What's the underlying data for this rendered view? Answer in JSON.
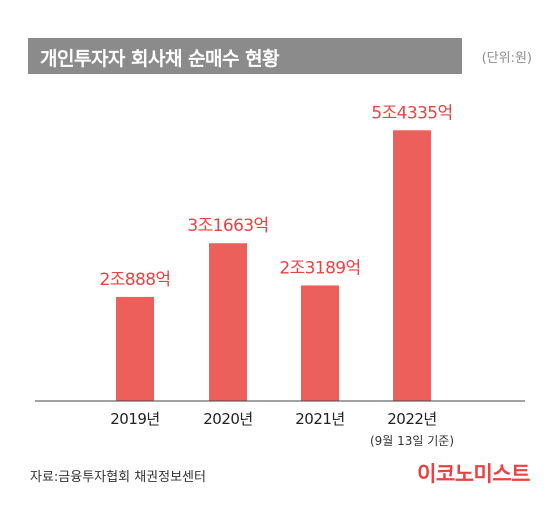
{
  "header": {
    "title": "개인투자자 회사채 순매수 현황",
    "unit": "(단위:원)"
  },
  "chart_data": {
    "type": "bar",
    "title": "개인투자자 회사채 순매수 현황",
    "unit": "(단위:원)",
    "categories": [
      "2019년",
      "2020년",
      "2021년",
      "2022년"
    ],
    "category_notes": [
      "",
      "",
      "",
      "(9월 13일 기준)"
    ],
    "values": [
      20888,
      31663,
      23189,
      54335
    ],
    "value_unit": "억원",
    "data_labels": [
      "2조888억",
      "3조1663억",
      "2조3189억",
      "5조4335억"
    ],
    "ylim": [
      0,
      58000
    ],
    "grid": false,
    "legend": "none",
    "bar_color": "#ec605c",
    "label_color": "#e84343"
  },
  "footer": {
    "source": "자료:금융투자협회 채권정보센터",
    "logo": "이코노미스트"
  },
  "colors": {
    "header_bg": "#8b8b8b",
    "bar": "#ec605c",
    "accent": "#e84343",
    "axis": "#444444"
  }
}
